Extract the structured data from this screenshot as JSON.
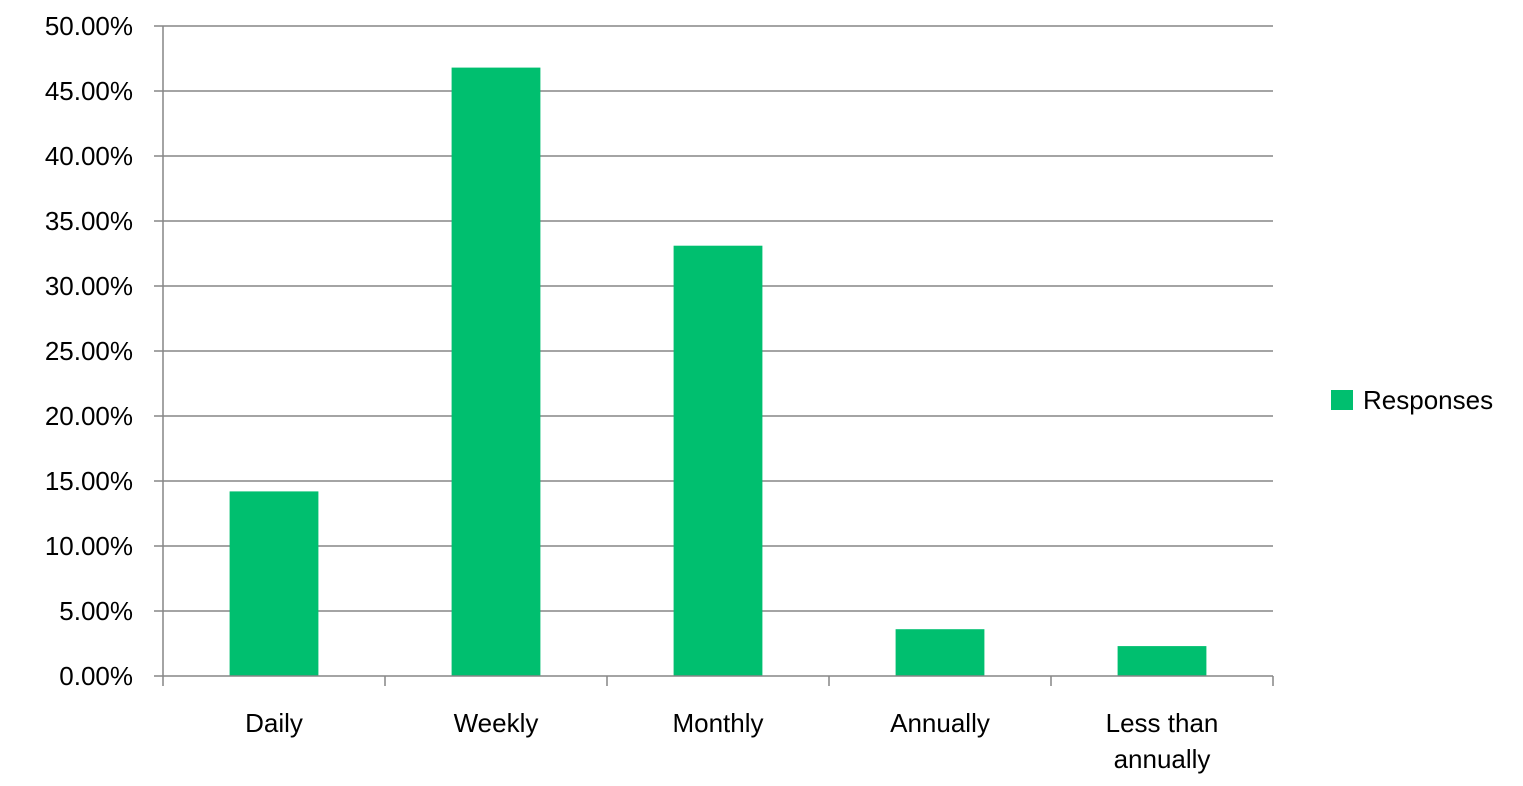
{
  "chart_data": {
    "type": "bar",
    "categories": [
      "Daily",
      "Weekly",
      "Monthly",
      "Annually",
      "Less than annually"
    ],
    "series": [
      {
        "name": "Responses",
        "values": [
          14.2,
          46.8,
          33.1,
          3.6,
          2.3
        ],
        "color": "#00BF6F"
      }
    ],
    "y_tick_labels": [
      "0.00%",
      "5.00%",
      "10.00%",
      "15.00%",
      "20.00%",
      "25.00%",
      "30.00%",
      "35.00%",
      "40.00%",
      "45.00%",
      "50.00%"
    ],
    "y_unit": "percent",
    "ylim": [
      0,
      50
    ],
    "grid": true,
    "legend_position": "right",
    "title": "",
    "xlabel": "",
    "ylabel": ""
  }
}
